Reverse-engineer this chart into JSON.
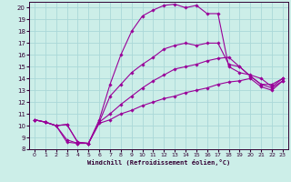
{
  "xlabel": "Windchill (Refroidissement éolien,°C)",
  "bg_color": "#cceee8",
  "line_color": "#990099",
  "grid_color": "#aad8d8",
  "xlim": [
    -0.5,
    23.5
  ],
  "ylim": [
    8,
    20.5
  ],
  "xticks": [
    0,
    1,
    2,
    3,
    4,
    5,
    6,
    7,
    8,
    9,
    10,
    11,
    12,
    13,
    14,
    15,
    16,
    17,
    18,
    19,
    20,
    21,
    22,
    23
  ],
  "yticks": [
    8,
    9,
    10,
    11,
    12,
    13,
    14,
    15,
    16,
    17,
    18,
    19,
    20
  ],
  "lines": [
    {
      "x": [
        0,
        1,
        2,
        3,
        4,
        5,
        6,
        7,
        8,
        9,
        10,
        11,
        12,
        13,
        14,
        15,
        16,
        17,
        18,
        19,
        20,
        21,
        22,
        23
      ],
      "y": [
        10.5,
        10.3,
        10.0,
        10.1,
        8.6,
        8.5,
        10.2,
        10.5,
        11.0,
        11.3,
        11.7,
        12.0,
        12.3,
        12.5,
        12.8,
        13.0,
        13.2,
        13.5,
        13.7,
        13.8,
        14.0,
        13.3,
        13.0,
        13.8
      ]
    },
    {
      "x": [
        0,
        1,
        2,
        3,
        4,
        5,
        6,
        7,
        8,
        9,
        10,
        11,
        12,
        13,
        14,
        15,
        16,
        17,
        18,
        19,
        20,
        21,
        22,
        23
      ],
      "y": [
        10.5,
        10.3,
        10.0,
        10.1,
        8.6,
        8.5,
        10.3,
        11.0,
        11.8,
        12.5,
        13.2,
        13.8,
        14.3,
        14.8,
        15.0,
        15.2,
        15.5,
        15.7,
        15.8,
        15.0,
        14.2,
        13.5,
        13.2,
        13.8
      ]
    },
    {
      "x": [
        0,
        1,
        2,
        3,
        4,
        5,
        6,
        7,
        8,
        9,
        10,
        11,
        12,
        13,
        14,
        15,
        16,
        17,
        18,
        19,
        20,
        21,
        22,
        23
      ],
      "y": [
        10.5,
        10.3,
        10.0,
        8.6,
        8.5,
        8.5,
        10.3,
        12.5,
        13.5,
        14.5,
        15.2,
        15.8,
        16.5,
        16.8,
        17.0,
        16.8,
        17.0,
        17.0,
        15.2,
        15.0,
        14.2,
        13.5,
        13.5,
        14.0
      ]
    },
    {
      "x": [
        0,
        1,
        2,
        3,
        4,
        5,
        6,
        7,
        8,
        9,
        10,
        11,
        12,
        13,
        14,
        15,
        16,
        17,
        18,
        19,
        20,
        21,
        22,
        23
      ],
      "y": [
        10.5,
        10.3,
        10.0,
        8.8,
        8.5,
        8.5,
        10.5,
        13.5,
        16.0,
        18.0,
        19.3,
        19.8,
        20.2,
        20.3,
        20.0,
        20.2,
        19.5,
        19.5,
        15.0,
        14.5,
        14.3,
        14.0,
        13.3,
        14.0
      ]
    }
  ]
}
